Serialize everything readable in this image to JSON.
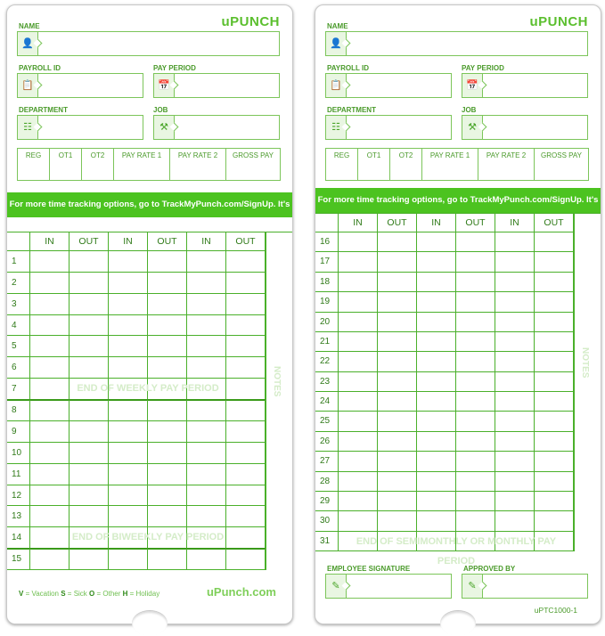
{
  "brand": "uPUNCH",
  "fields": {
    "name": "NAME",
    "payroll_id": "PAYROLL ID",
    "pay_period": "PAY PERIOD",
    "department": "DEPARTMENT",
    "job": "JOB"
  },
  "summary": [
    "REG",
    "OT1",
    "OT2",
    "PAY RATE 1",
    "PAY RATE 2",
    "GROSS PAY"
  ],
  "banner": "For more time tracking options, go to TrackMyPunch.com/SignUp. It's free!",
  "columns": [
    "IN",
    "OUT",
    "IN",
    "OUT",
    "IN",
    "OUT"
  ],
  "notes": "NOTES",
  "left_rows": [
    "1",
    "2",
    "3",
    "4",
    "5",
    "6",
    "7",
    "8",
    "9",
    "10",
    "11",
    "12",
    "13",
    "14",
    "15"
  ],
  "right_rows": [
    "16",
    "17",
    "18",
    "19",
    "20",
    "21",
    "22",
    "23",
    "24",
    "25",
    "26",
    "27",
    "28",
    "29",
    "30",
    "31"
  ],
  "overlays": {
    "weekly": "END OF WEEKLY PAY PERIOD",
    "biweekly": "END OF BIWEEKLY PAY PERIOD",
    "monthly": "END OF SEMIMONTHLY OR MONTHLY PAY PERIOD"
  },
  "legend": {
    "v": "V",
    "v_label": " = Vacation ",
    "s": "S",
    "s_label": " = Sick ",
    "o": "O",
    "o_label": " = Other ",
    "h": "H",
    "h_label": " = Holiday"
  },
  "website": "uPunch.com",
  "signature": {
    "employee": "EMPLOYEE SIGNATURE",
    "approved": "APPROVED BY"
  },
  "code": "uPTC1000-1",
  "icons": {
    "name": "person-icon",
    "payroll": "id-badge-icon",
    "period": "calendar-icon",
    "department": "org-chart-icon",
    "job": "tools-icon",
    "sign": "pencil-icon"
  },
  "colors": {
    "brand_green": "#4cc320",
    "line_green": "#4ab02a"
  }
}
